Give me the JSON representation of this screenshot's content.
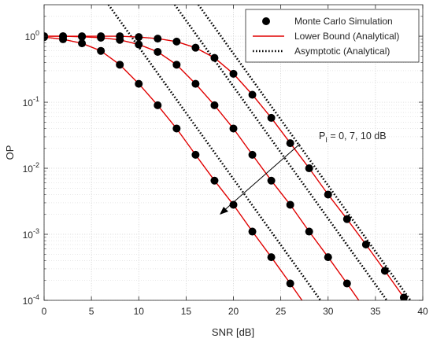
{
  "chart_data": {
    "type": "line",
    "xlabel": "SNR [dB]",
    "ylabel": "OP",
    "xlim": [
      0,
      40
    ],
    "ylim": [
      0.0001,
      3
    ],
    "y_scale": "log",
    "grid": true,
    "legend_position": "top-right",
    "x_ticks": [
      "0",
      "5",
      "10",
      "15",
      "20",
      "25",
      "30",
      "35",
      "40"
    ],
    "y_ticks": [
      {
        "base": "10",
        "exp": "0",
        "value": 1
      },
      {
        "base": "10",
        "exp": "-1",
        "value": 0.1
      },
      {
        "base": "10",
        "exp": "-2",
        "value": 0.01
      },
      {
        "base": "10",
        "exp": "-3",
        "value": 0.001
      },
      {
        "base": "10",
        "exp": "-4",
        "value": 0.0001
      }
    ],
    "legend": [
      {
        "label": "Monte Carlo Simulation",
        "style": "marker"
      },
      {
        "label": "Lower Bound (Analytical)",
        "style": "red-line"
      },
      {
        "label": "Asymptotic (Analytical)",
        "style": "dotted-line"
      }
    ],
    "annotation": {
      "prefix": "P",
      "subscript": "I",
      "suffix": " = 0, 7, 10 dB"
    },
    "colors": {
      "lower_bound": "#e00000",
      "markers": "#000000",
      "asymptotic": "#000000"
    },
    "series": [
      {
        "curve": "PI = 0 dB",
        "monte_carlo_x": [
          0,
          2,
          4,
          6,
          8,
          10,
          12,
          14,
          16,
          18,
          20,
          22,
          24,
          26,
          28
        ],
        "monte_carlo_y": [
          0.97,
          0.9,
          0.78,
          0.6,
          0.37,
          0.19,
          0.09,
          0.04,
          0.016,
          0.0065,
          0.0028,
          0.0011,
          0.00045,
          0.00018,
          7e-05
        ],
        "lower_bound_x": [
          0,
          2,
          4,
          6,
          8,
          10,
          12,
          14,
          16,
          18,
          20,
          22,
          24,
          26,
          28,
          30
        ],
        "lower_bound_y": [
          0.97,
          0.9,
          0.78,
          0.6,
          0.37,
          0.19,
          0.09,
          0.04,
          0.016,
          0.0065,
          0.0028,
          0.0011,
          0.00045,
          0.00018,
          7e-05,
          3e-05
        ],
        "asymptotic_x": [
          6.8,
          29.2
        ],
        "asymptotic_y": [
          3,
          0.0001
        ]
      },
      {
        "curve": "PI = 7 dB",
        "monte_carlo_x": [
          0,
          2,
          4,
          6,
          8,
          10,
          12,
          14,
          16,
          18,
          20,
          22,
          24,
          26,
          28,
          30,
          32,
          34
        ],
        "monte_carlo_y": [
          1.0,
          1.0,
          0.98,
          0.95,
          0.88,
          0.75,
          0.58,
          0.37,
          0.19,
          0.09,
          0.04,
          0.016,
          0.0065,
          0.0028,
          0.0011,
          0.00045,
          0.00018,
          7e-05
        ],
        "lower_bound_x": [
          0,
          2,
          4,
          6,
          8,
          10,
          12,
          14,
          16,
          18,
          20,
          22,
          24,
          26,
          28,
          30,
          32,
          34,
          36
        ],
        "lower_bound_y": [
          1.0,
          1.0,
          0.98,
          0.95,
          0.88,
          0.75,
          0.58,
          0.37,
          0.19,
          0.09,
          0.04,
          0.016,
          0.0065,
          0.0028,
          0.0011,
          0.00045,
          0.00018,
          7e-05,
          3e-05
        ],
        "asymptotic_x": [
          13.8,
          36.2
        ],
        "asymptotic_y": [
          3,
          0.0001
        ]
      },
      {
        "curve": "PI = 10 dB",
        "monte_carlo_x": [
          0,
          2,
          4,
          6,
          8,
          10,
          12,
          14,
          16,
          18,
          20,
          22,
          24,
          26,
          28,
          30,
          32,
          34,
          36,
          38
        ],
        "monte_carlo_y": [
          1.0,
          1.0,
          1.0,
          1.0,
          1.0,
          0.97,
          0.92,
          0.83,
          0.67,
          0.47,
          0.27,
          0.13,
          0.058,
          0.024,
          0.01,
          0.004,
          0.0017,
          0.0007,
          0.00028,
          0.00011
        ],
        "lower_bound_x": [
          0,
          2,
          4,
          6,
          8,
          10,
          12,
          14,
          16,
          18,
          20,
          22,
          24,
          26,
          28,
          30,
          32,
          34,
          36,
          38
        ],
        "lower_bound_y": [
          1.0,
          1.0,
          1.0,
          1.0,
          1.0,
          0.97,
          0.92,
          0.83,
          0.67,
          0.47,
          0.27,
          0.13,
          0.058,
          0.024,
          0.01,
          0.004,
          0.0017,
          0.0007,
          0.00028,
          0.00011
        ],
        "asymptotic_x": [
          16.3,
          38.7
        ],
        "asymptotic_y": [
          3,
          0.0001
        ]
      }
    ]
  }
}
